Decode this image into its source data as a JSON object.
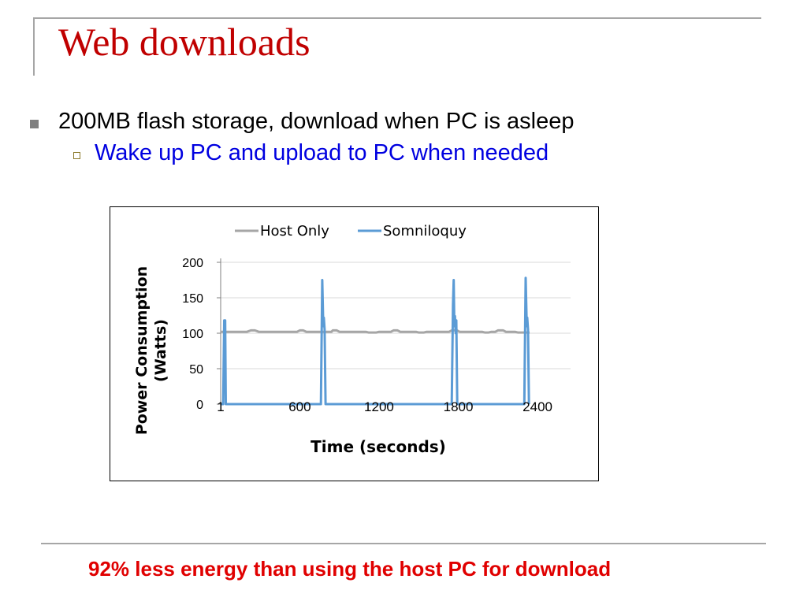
{
  "slide": {
    "title": "Web downloads",
    "bullets": [
      {
        "level": 1,
        "text": "200MB flash storage, download when PC is asleep"
      },
      {
        "level": 2,
        "text": "Wake up PC and upload to PC when needed"
      }
    ],
    "conclusion": "92% less energy than using the host PC for download",
    "colors": {
      "title": "#c00000",
      "sub_bullet": "#0000e0",
      "conclusion": "#e00000"
    }
  },
  "chart_data": {
    "type": "line",
    "title": "",
    "xlabel": "Time (seconds)",
    "ylabel": "Power Consumption (Watts)",
    "ylabel_lines": [
      "Power Consumption",
      "(Watts)"
    ],
    "ylim": [
      0,
      200
    ],
    "yticks": [
      0,
      50,
      100,
      150,
      200
    ],
    "xlim": [
      1,
      2650
    ],
    "xticks": [
      "1",
      "600",
      "1200",
      "1800",
      "2400"
    ],
    "xtick_values": [
      1,
      600,
      1200,
      1800,
      2400
    ],
    "legend": "top",
    "grid": true,
    "series": [
      {
        "name": "Host Only",
        "color": "#a6a6a6",
        "points": [
          [
            1,
            102
          ],
          [
            200,
            102
          ],
          [
            230,
            104
          ],
          [
            260,
            104
          ],
          [
            290,
            102
          ],
          [
            500,
            102
          ],
          [
            580,
            102
          ],
          [
            600,
            104
          ],
          [
            625,
            104
          ],
          [
            650,
            102
          ],
          [
            840,
            102
          ],
          [
            850,
            104
          ],
          [
            880,
            104
          ],
          [
            900,
            102
          ],
          [
            1100,
            102
          ],
          [
            1120,
            101
          ],
          [
            1180,
            101
          ],
          [
            1200,
            102
          ],
          [
            1290,
            102
          ],
          [
            1310,
            104
          ],
          [
            1340,
            104
          ],
          [
            1360,
            102
          ],
          [
            1480,
            102
          ],
          [
            1500,
            101
          ],
          [
            1540,
            101
          ],
          [
            1560,
            102
          ],
          [
            1730,
            102
          ],
          [
            1750,
            104
          ],
          [
            1790,
            104
          ],
          [
            1810,
            102
          ],
          [
            1980,
            102
          ],
          [
            2000,
            101
          ],
          [
            2030,
            101
          ],
          [
            2050,
            102
          ],
          [
            2080,
            102
          ],
          [
            2100,
            104
          ],
          [
            2140,
            104
          ],
          [
            2160,
            102
          ],
          [
            2230,
            102
          ],
          [
            2250,
            101
          ],
          [
            2340,
            101
          ]
        ]
      },
      {
        "name": "Somniloquy",
        "color": "#5b9bd5",
        "points": [
          [
            1,
            0
          ],
          [
            20,
            0
          ],
          [
            28,
            118
          ],
          [
            35,
            118
          ],
          [
            40,
            0
          ],
          [
            45,
            0
          ],
          [
            760,
            0
          ],
          [
            770,
            175
          ],
          [
            778,
            110
          ],
          [
            782,
            122
          ],
          [
            788,
            105
          ],
          [
            795,
            0
          ],
          [
            1750,
            0
          ],
          [
            1760,
            140
          ],
          [
            1765,
            175
          ],
          [
            1770,
            110
          ],
          [
            1775,
            124
          ],
          [
            1780,
            100
          ],
          [
            1785,
            118
          ],
          [
            1792,
            0
          ],
          [
            2300,
            0
          ],
          [
            2310,
            178
          ],
          [
            2318,
            110
          ],
          [
            2322,
            122
          ],
          [
            2328,
            105
          ],
          [
            2335,
            0
          ]
        ]
      }
    ]
  }
}
